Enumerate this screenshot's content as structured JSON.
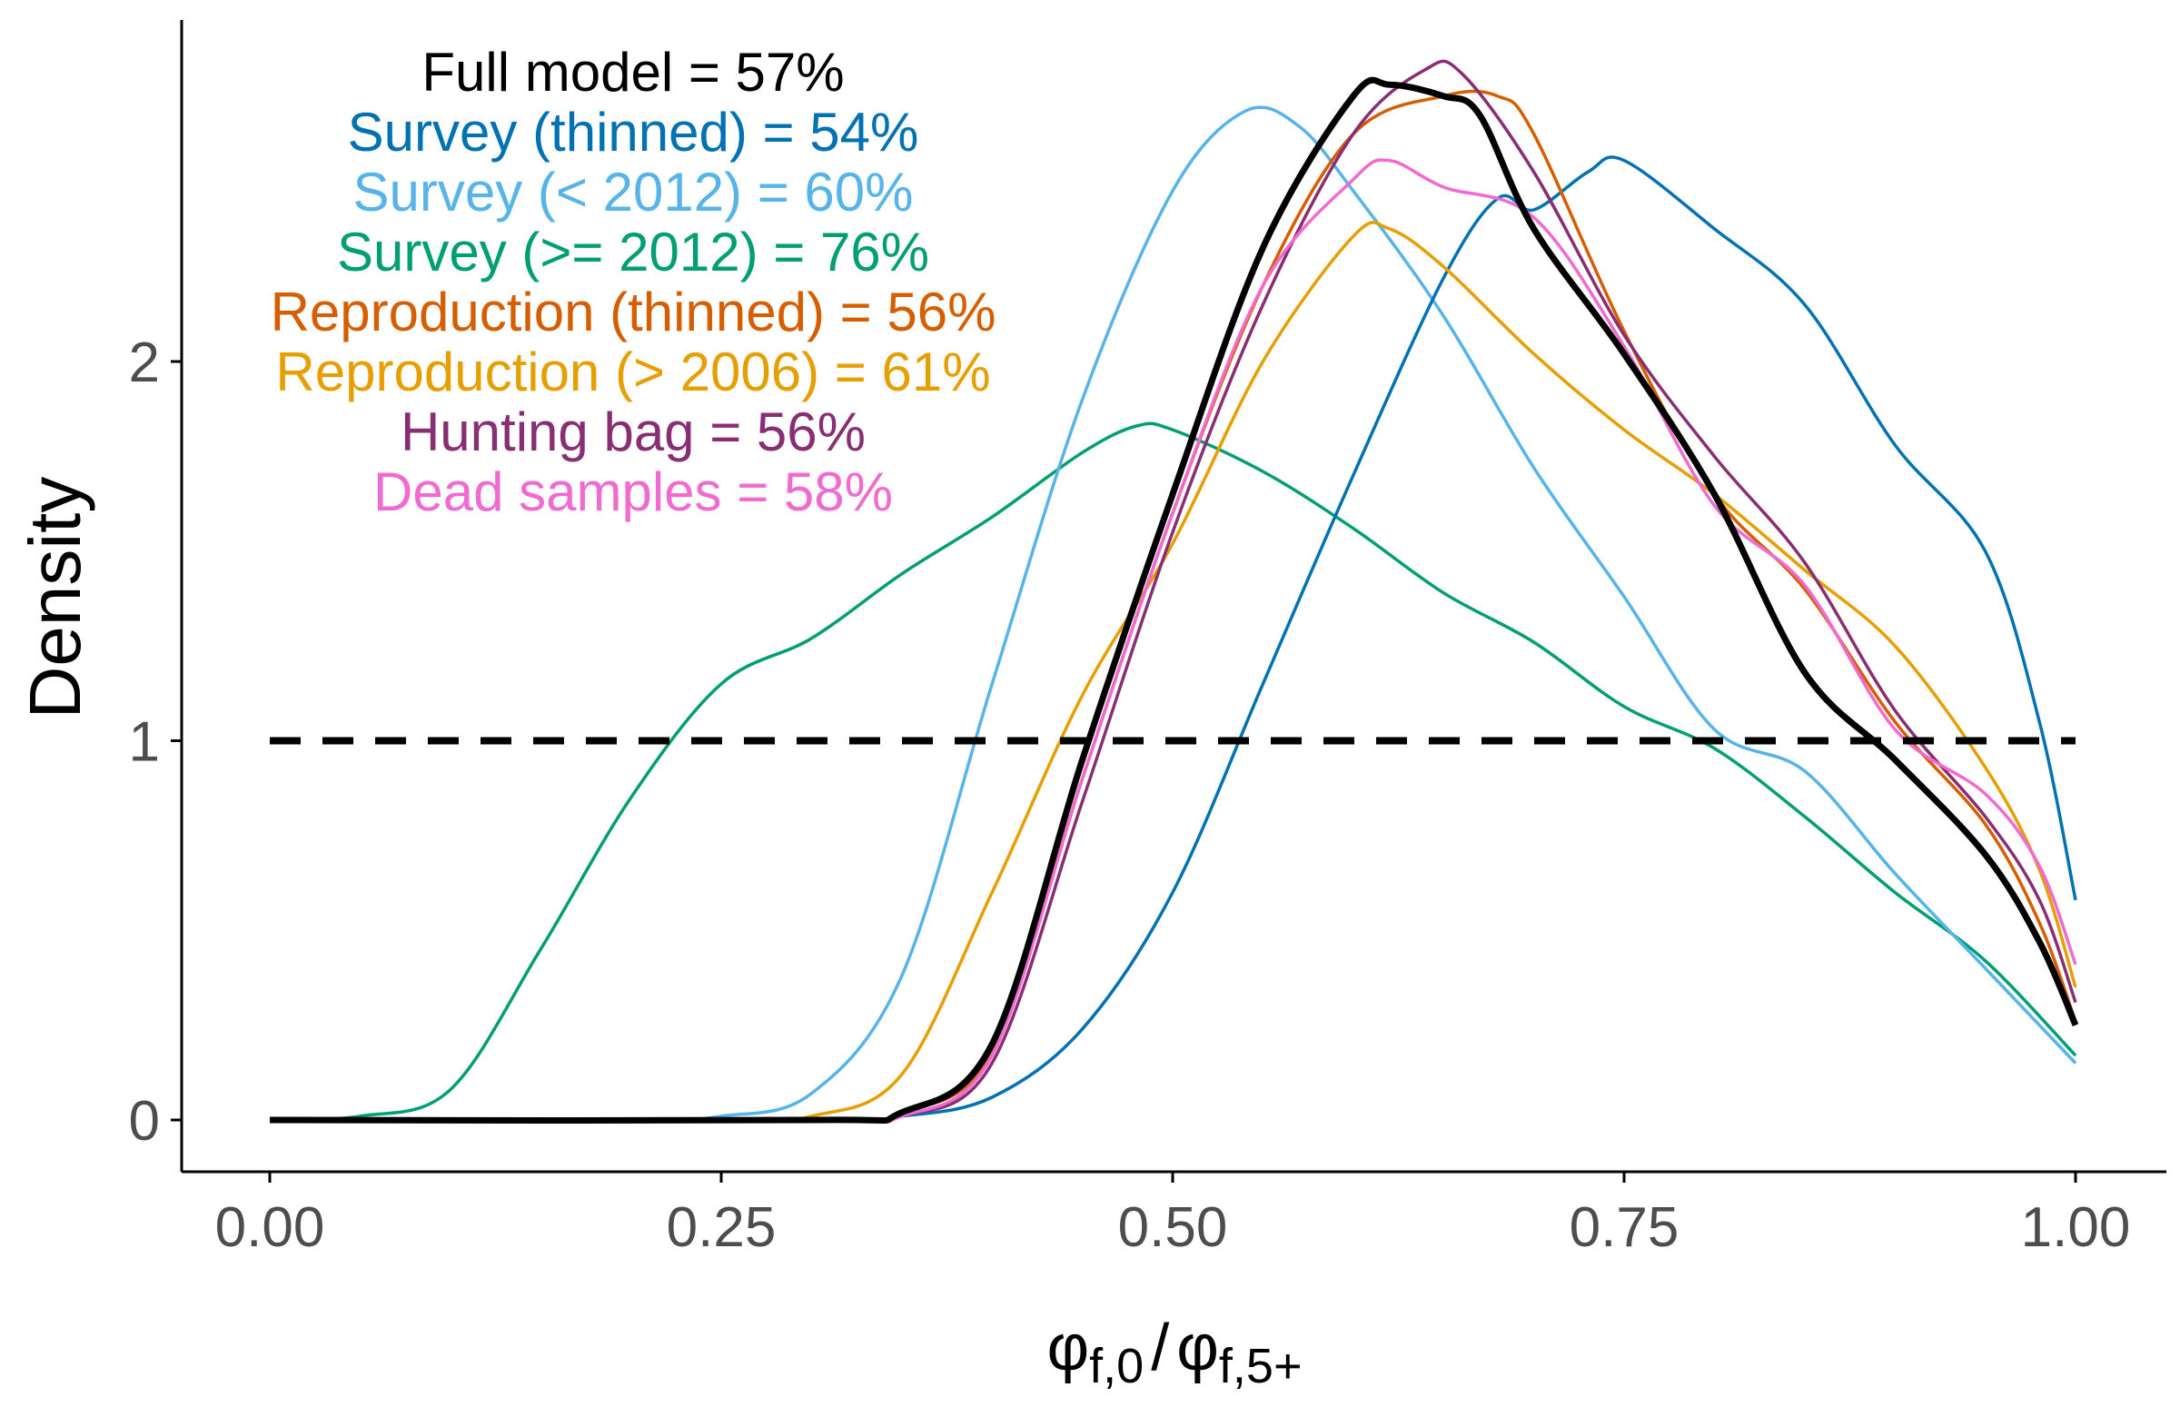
{
  "chart_data": {
    "type": "line",
    "title": "",
    "ylabel": "Density",
    "xlabel": {
      "numerator": "φ",
      "numerator_sub": "f,0",
      "separator": "/",
      "denominator": "φ",
      "denominator_sub": "f,5+"
    },
    "xlim": [
      -0.05,
      1.05
    ],
    "ylim": [
      -0.07,
      2.9
    ],
    "x_ticks": [
      0,
      0.25,
      0.5,
      0.75,
      1
    ],
    "x_tick_labels": [
      "0.00",
      "0.25",
      "0.50",
      "0.75",
      "1.00"
    ],
    "y_ticks": [
      0,
      1,
      2
    ],
    "y_tick_labels": [
      "0",
      "1",
      "2"
    ],
    "grid": false,
    "reference_line": {
      "y": 1,
      "x_range": [
        0,
        1
      ],
      "style": "dashed",
      "color": "#000000"
    },
    "annotations": [
      {
        "text": "Full model = 57%",
        "color": "#000000"
      },
      {
        "text": "Survey (thinned) = 54%",
        "color": "#0072B2"
      },
      {
        "text": "Survey (< 2012) = 60%",
        "color": "#56B4E9"
      },
      {
        "text": "Survey (>= 2012) = 76%",
        "color": "#009E73"
      },
      {
        "text": "Reproduction (thinned) = 56%",
        "color": "#D55E00"
      },
      {
        "text": "Reproduction (> 2006) = 61%",
        "color": "#E69F00"
      },
      {
        "text": "Hunting bag = 56%",
        "color": "#882E72"
      },
      {
        "text": "Dead samples = 58%",
        "color": "#F06ACF"
      }
    ],
    "series": [
      {
        "color": "#009E73",
        "width": "normal",
        "x": [
          0,
          0.05,
          0.1,
          0.15,
          0.2,
          0.25,
          0.3,
          0.35,
          0.4,
          0.45,
          0.48,
          0.5,
          0.55,
          0.6,
          0.65,
          0.7,
          0.75,
          0.8,
          0.85,
          0.9,
          0.95,
          1.0
        ],
        "y": [
          0.0,
          0.01,
          0.08,
          0.45,
          0.85,
          1.15,
          1.27,
          1.44,
          1.59,
          1.76,
          1.83,
          1.82,
          1.71,
          1.56,
          1.39,
          1.26,
          1.09,
          0.98,
          0.8,
          0.6,
          0.42,
          0.17
        ]
      },
      {
        "color": "#56B4E9",
        "width": "normal",
        "x": [
          0,
          0.2,
          0.25,
          0.3,
          0.35,
          0.4,
          0.45,
          0.5,
          0.54,
          0.57,
          0.6,
          0.65,
          0.7,
          0.75,
          0.8,
          0.85,
          0.9,
          0.95,
          1.0
        ],
        "y": [
          0.0,
          0.0,
          0.01,
          0.07,
          0.38,
          1.15,
          1.9,
          2.45,
          2.66,
          2.62,
          2.45,
          2.12,
          1.72,
          1.38,
          1.03,
          0.92,
          0.65,
          0.4,
          0.15
        ]
      },
      {
        "color": "#0072B2",
        "width": "normal",
        "x": [
          0,
          0.3,
          0.35,
          0.4,
          0.45,
          0.5,
          0.55,
          0.6,
          0.65,
          0.68,
          0.7,
          0.73,
          0.75,
          0.8,
          0.85,
          0.9,
          0.95,
          0.98,
          1.0
        ],
        "y": [
          0.0,
          0.0,
          0.01,
          0.06,
          0.24,
          0.6,
          1.15,
          1.7,
          2.22,
          2.43,
          2.4,
          2.5,
          2.53,
          2.35,
          2.15,
          1.78,
          1.5,
          1.05,
          0.58
        ]
      },
      {
        "color": "#E69F00",
        "width": "normal",
        "x": [
          0,
          0.25,
          0.3,
          0.35,
          0.4,
          0.45,
          0.5,
          0.55,
          0.6,
          0.62,
          0.65,
          0.7,
          0.75,
          0.8,
          0.85,
          0.9,
          0.95,
          0.98,
          1.0
        ],
        "y": [
          0.0,
          0.0,
          0.01,
          0.12,
          0.6,
          1.12,
          1.52,
          2.0,
          2.33,
          2.35,
          2.25,
          2.02,
          1.82,
          1.65,
          1.45,
          1.25,
          0.93,
          0.66,
          0.35
        ]
      },
      {
        "color": "#D55E00",
        "width": "normal",
        "x": [
          0,
          0.3,
          0.35,
          0.4,
          0.45,
          0.5,
          0.55,
          0.6,
          0.65,
          0.68,
          0.7,
          0.75,
          0.8,
          0.85,
          0.9,
          0.95,
          0.98,
          1.0
        ],
        "y": [
          0.0,
          0.0,
          0.02,
          0.18,
          0.9,
          1.6,
          2.2,
          2.6,
          2.7,
          2.7,
          2.6,
          2.08,
          1.65,
          1.4,
          1.05,
          0.78,
          0.52,
          0.26
        ]
      },
      {
        "color": "#882E72",
        "width": "normal",
        "x": [
          0,
          0.3,
          0.35,
          0.4,
          0.45,
          0.5,
          0.55,
          0.6,
          0.64,
          0.66,
          0.7,
          0.75,
          0.8,
          0.85,
          0.9,
          0.95,
          0.98,
          1.0
        ],
        "y": [
          0.0,
          0.0,
          0.01,
          0.15,
          0.84,
          1.55,
          2.15,
          2.6,
          2.77,
          2.76,
          2.5,
          2.07,
          1.75,
          1.47,
          1.08,
          0.8,
          0.58,
          0.31
        ]
      },
      {
        "color": "#F06ACF",
        "width": "normal",
        "x": [
          0,
          0.3,
          0.35,
          0.4,
          0.45,
          0.5,
          0.55,
          0.6,
          0.62,
          0.65,
          0.7,
          0.75,
          0.8,
          0.85,
          0.9,
          0.95,
          0.98,
          1.0
        ],
        "y": [
          0.0,
          0.0,
          0.01,
          0.17,
          0.9,
          1.6,
          2.2,
          2.48,
          2.53,
          2.46,
          2.38,
          2.04,
          1.62,
          1.41,
          1.03,
          0.86,
          0.67,
          0.41
        ]
      },
      {
        "color": "#000000",
        "width": "thick",
        "x": [
          0,
          0.3,
          0.35,
          0.4,
          0.45,
          0.5,
          0.55,
          0.6,
          0.62,
          0.65,
          0.67,
          0.7,
          0.75,
          0.8,
          0.85,
          0.9,
          0.95,
          0.98,
          1.0
        ],
        "y": [
          0.0,
          0.0,
          0.02,
          0.2,
          0.95,
          1.65,
          2.3,
          2.7,
          2.73,
          2.7,
          2.65,
          2.35,
          2.02,
          1.65,
          1.18,
          0.95,
          0.7,
          0.47,
          0.25
        ]
      }
    ]
  }
}
